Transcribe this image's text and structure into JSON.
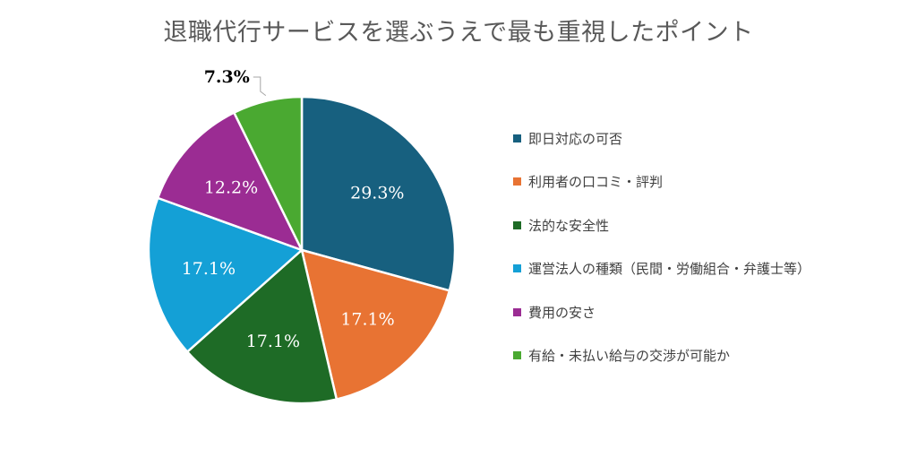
{
  "chart_data": {
    "type": "pie",
    "title": "退職代行サービスを選ぶうえで最も重視したポイント",
    "categories": [
      "即日対応の可否",
      "利用者の口コミ・評判",
      "法的な安全性",
      "運営法人の種類（民間・労働組合・弁護士等）",
      "費用の安さ",
      "有給・未払い給与の交渉が可能か"
    ],
    "values": [
      29.3,
      17.1,
      17.1,
      17.1,
      12.2,
      7.3
    ],
    "value_labels": [
      "29.3%",
      "17.1%",
      "17.1%",
      "17.1%",
      "12.2%",
      "7.3%"
    ],
    "colors": [
      "#17607f",
      "#e87333",
      "#1e6b26",
      "#14a0d6",
      "#9b2c93",
      "#4aa931"
    ],
    "legend_position": "right"
  }
}
